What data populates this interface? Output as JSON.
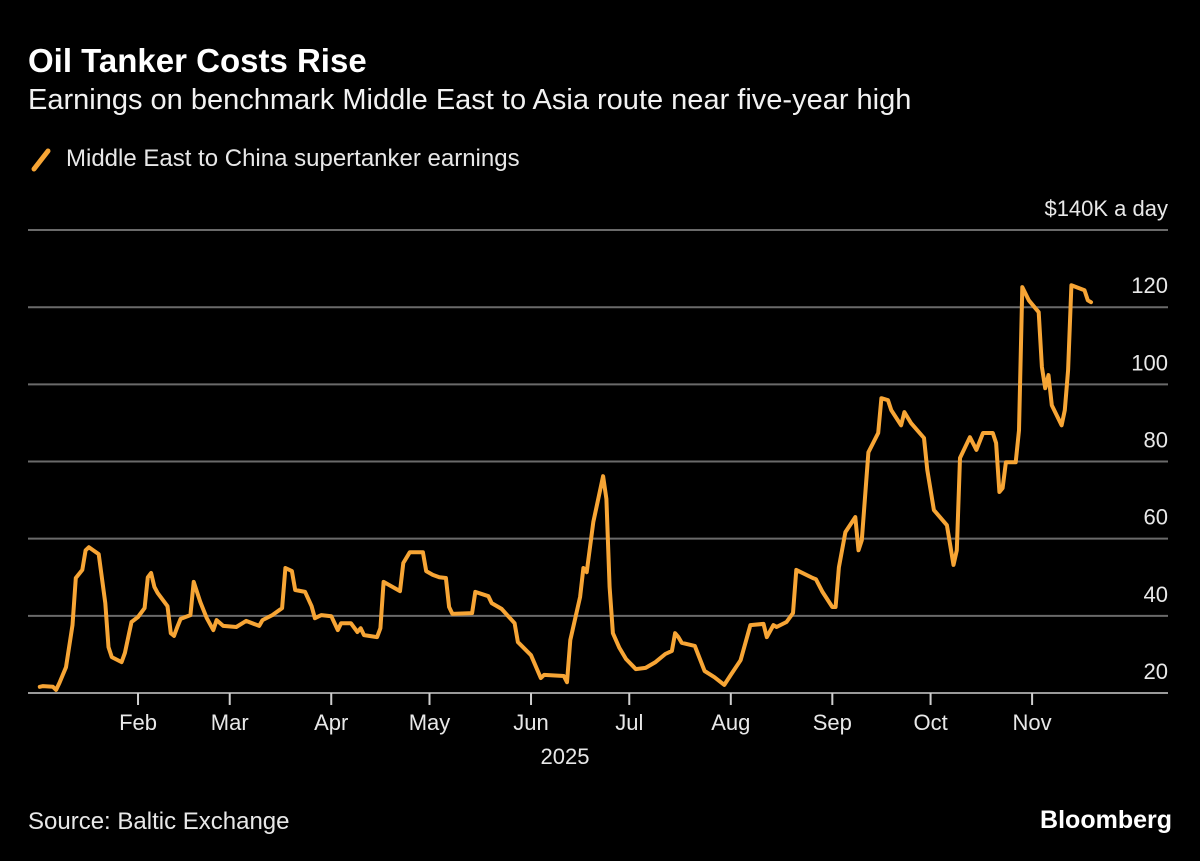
{
  "title": "Oil Tanker Costs Rise",
  "subtitle": "Earnings on benchmark Middle East to Asia route near five-year high",
  "source": "Source: Baltic Exchange",
  "brand": "Bloomberg",
  "colors": {
    "background": "#000000",
    "line": "#f7a535",
    "grid": "#6a6a6a"
  },
  "chart_data": {
    "type": "line",
    "legend_position": "top-left",
    "grid": true,
    "ylabel": "",
    "y_unit_label": "$140K a day",
    "ylim": [
      20,
      140
    ],
    "y_ticks": [
      20,
      40,
      60,
      80,
      100,
      120,
      140
    ],
    "y_tick_labels": [
      "20",
      "40",
      "60",
      "80",
      "100",
      "120",
      "$140K a day"
    ],
    "xlim": [
      "2025-01-01",
      "2025-11-24"
    ],
    "x_ticks": [
      "2025-02-01",
      "2025-03-01",
      "2025-04-01",
      "2025-05-01",
      "2025-06-01",
      "2025-07-01",
      "2025-08-01",
      "2025-09-01",
      "2025-10-01",
      "2025-11-01"
    ],
    "x_tick_labels": [
      "Feb",
      "Mar",
      "Apr",
      "May",
      "Jun",
      "Jul",
      "Aug",
      "Sep",
      "Oct",
      "Nov"
    ],
    "x_year_label": "2025",
    "series": [
      {
        "name": "Middle East to China supertanker earnings",
        "points": [
          [
            "2025-01-02",
            21.6
          ],
          [
            "2025-01-03",
            21.8
          ],
          [
            "2025-01-06",
            21.6
          ],
          [
            "2025-01-07",
            20.8
          ],
          [
            "2025-01-08",
            22.6
          ],
          [
            "2025-01-10",
            26.7
          ],
          [
            "2025-01-12",
            37.6
          ],
          [
            "2025-01-13",
            49.8
          ],
          [
            "2025-01-15",
            51.9
          ],
          [
            "2025-01-16",
            57.0
          ],
          [
            "2025-01-17",
            57.8
          ],
          [
            "2025-01-20",
            56.0
          ],
          [
            "2025-01-22",
            43.3
          ],
          [
            "2025-01-23",
            31.9
          ],
          [
            "2025-01-24",
            29.3
          ],
          [
            "2025-01-27",
            28.0
          ],
          [
            "2025-01-28",
            30.4
          ],
          [
            "2025-01-30",
            38.4
          ],
          [
            "2025-02-01",
            39.7
          ],
          [
            "2025-02-03",
            42.0
          ],
          [
            "2025-02-04",
            50.0
          ],
          [
            "2025-02-05",
            51.1
          ],
          [
            "2025-02-06",
            47.5
          ],
          [
            "2025-02-07",
            45.9
          ],
          [
            "2025-02-10",
            42.5
          ],
          [
            "2025-02-11",
            35.5
          ],
          [
            "2025-02-12",
            34.8
          ],
          [
            "2025-02-13",
            37.1
          ],
          [
            "2025-02-14",
            39.2
          ],
          [
            "2025-02-17",
            40.2
          ],
          [
            "2025-02-18",
            48.8
          ],
          [
            "2025-02-20",
            43.6
          ],
          [
            "2025-02-22",
            39.4
          ],
          [
            "2025-02-24",
            36.3
          ],
          [
            "2025-02-25",
            38.9
          ],
          [
            "2025-02-27",
            37.4
          ],
          [
            "2025-03-03",
            37.1
          ],
          [
            "2025-03-06",
            38.7
          ],
          [
            "2025-03-10",
            37.4
          ],
          [
            "2025-03-11",
            38.9
          ],
          [
            "2025-03-14",
            40.2
          ],
          [
            "2025-03-17",
            42.0
          ],
          [
            "2025-03-18",
            52.4
          ],
          [
            "2025-03-20",
            51.6
          ],
          [
            "2025-03-21",
            46.7
          ],
          [
            "2025-03-24",
            46.2
          ],
          [
            "2025-03-26",
            42.5
          ],
          [
            "2025-03-27",
            39.4
          ],
          [
            "2025-03-29",
            40.2
          ],
          [
            "2025-04-01",
            39.9
          ],
          [
            "2025-04-03",
            36.3
          ],
          [
            "2025-04-04",
            38.1
          ],
          [
            "2025-04-07",
            38.1
          ],
          [
            "2025-04-09",
            35.8
          ],
          [
            "2025-04-10",
            36.8
          ],
          [
            "2025-04-11",
            35.0
          ],
          [
            "2025-04-15",
            34.5
          ],
          [
            "2025-04-16",
            36.8
          ],
          [
            "2025-04-17",
            48.8
          ],
          [
            "2025-04-22",
            46.4
          ],
          [
            "2025-04-23",
            53.7
          ],
          [
            "2025-04-25",
            56.5
          ],
          [
            "2025-04-29",
            56.5
          ],
          [
            "2025-04-30",
            51.6
          ],
          [
            "2025-05-02",
            50.6
          ],
          [
            "2025-05-04",
            50.0
          ],
          [
            "2025-05-06",
            49.8
          ],
          [
            "2025-05-07",
            42.3
          ],
          [
            "2025-05-08",
            40.5
          ],
          [
            "2025-05-14",
            40.7
          ],
          [
            "2025-05-15",
            46.2
          ],
          [
            "2025-05-19",
            45.1
          ],
          [
            "2025-05-20",
            43.3
          ],
          [
            "2025-05-23",
            41.8
          ],
          [
            "2025-05-27",
            38.1
          ],
          [
            "2025-05-28",
            33.2
          ],
          [
            "2025-06-01",
            29.8
          ],
          [
            "2025-06-04",
            23.9
          ],
          [
            "2025-06-05",
            24.7
          ],
          [
            "2025-06-11",
            24.4
          ],
          [
            "2025-06-12",
            22.8
          ],
          [
            "2025-06-13",
            33.7
          ],
          [
            "2025-06-16",
            44.9
          ],
          [
            "2025-06-17",
            52.4
          ],
          [
            "2025-06-18",
            51.3
          ],
          [
            "2025-06-20",
            64.3
          ],
          [
            "2025-06-23",
            76.2
          ],
          [
            "2025-06-24",
            70.3
          ],
          [
            "2025-06-25",
            47.5
          ],
          [
            "2025-06-26",
            35.5
          ],
          [
            "2025-06-28",
            31.7
          ],
          [
            "2025-06-30",
            28.8
          ],
          [
            "2025-07-03",
            26.2
          ],
          [
            "2025-07-06",
            26.5
          ],
          [
            "2025-07-09",
            28.0
          ],
          [
            "2025-07-12",
            30.1
          ],
          [
            "2025-07-14",
            30.9
          ],
          [
            "2025-07-15",
            35.5
          ],
          [
            "2025-07-16",
            34.5
          ],
          [
            "2025-07-17",
            33.0
          ],
          [
            "2025-07-21",
            32.2
          ],
          [
            "2025-07-24",
            25.7
          ],
          [
            "2025-07-27",
            24.1
          ],
          [
            "2025-07-30",
            22.1
          ],
          [
            "2025-08-01",
            24.7
          ],
          [
            "2025-08-04",
            28.5
          ],
          [
            "2025-08-07",
            37.6
          ],
          [
            "2025-08-11",
            37.9
          ],
          [
            "2025-08-12",
            34.5
          ],
          [
            "2025-08-14",
            37.6
          ],
          [
            "2025-08-15",
            37.1
          ],
          [
            "2025-08-18",
            38.4
          ],
          [
            "2025-08-20",
            40.7
          ],
          [
            "2025-08-21",
            51.9
          ],
          [
            "2025-08-26",
            49.8
          ],
          [
            "2025-08-27",
            49.5
          ],
          [
            "2025-08-29",
            46.2
          ],
          [
            "2025-09-01",
            42.3
          ],
          [
            "2025-09-02",
            42.3
          ],
          [
            "2025-09-03",
            52.6
          ],
          [
            "2025-09-05",
            61.7
          ],
          [
            "2025-09-08",
            65.6
          ],
          [
            "2025-09-09",
            57.0
          ],
          [
            "2025-09-10",
            59.6
          ],
          [
            "2025-09-12",
            82.4
          ],
          [
            "2025-09-15",
            87.4
          ],
          [
            "2025-09-16",
            96.4
          ],
          [
            "2025-09-18",
            95.9
          ],
          [
            "2025-09-19",
            93.3
          ],
          [
            "2025-09-22",
            89.4
          ],
          [
            "2025-09-23",
            92.8
          ],
          [
            "2025-09-25",
            90.0
          ],
          [
            "2025-09-29",
            86.1
          ],
          [
            "2025-09-30",
            77.8
          ],
          [
            "2025-10-02",
            67.4
          ],
          [
            "2025-10-06",
            63.5
          ],
          [
            "2025-10-08",
            53.2
          ],
          [
            "2025-10-09",
            57.0
          ],
          [
            "2025-10-10",
            80.9
          ],
          [
            "2025-10-13",
            86.3
          ],
          [
            "2025-10-15",
            83.0
          ],
          [
            "2025-10-17",
            87.4
          ],
          [
            "2025-10-20",
            87.4
          ],
          [
            "2025-10-21",
            84.8
          ],
          [
            "2025-10-22",
            72.1
          ],
          [
            "2025-10-23",
            73.1
          ],
          [
            "2025-10-24",
            79.8
          ],
          [
            "2025-10-27",
            79.8
          ],
          [
            "2025-10-28",
            88.1
          ],
          [
            "2025-10-29",
            125.2
          ],
          [
            "2025-10-31",
            121.8
          ],
          [
            "2025-11-03",
            118.7
          ],
          [
            "2025-11-04",
            104.5
          ],
          [
            "2025-11-05",
            99.0
          ],
          [
            "2025-11-06",
            102.4
          ],
          [
            "2025-11-07",
            94.6
          ],
          [
            "2025-11-10",
            89.4
          ],
          [
            "2025-11-11",
            93.3
          ],
          [
            "2025-11-12",
            103.7
          ],
          [
            "2025-11-13",
            125.7
          ],
          [
            "2025-11-17",
            124.4
          ],
          [
            "2025-11-18",
            121.8
          ],
          [
            "2025-11-19",
            121.3
          ]
        ]
      }
    ]
  }
}
